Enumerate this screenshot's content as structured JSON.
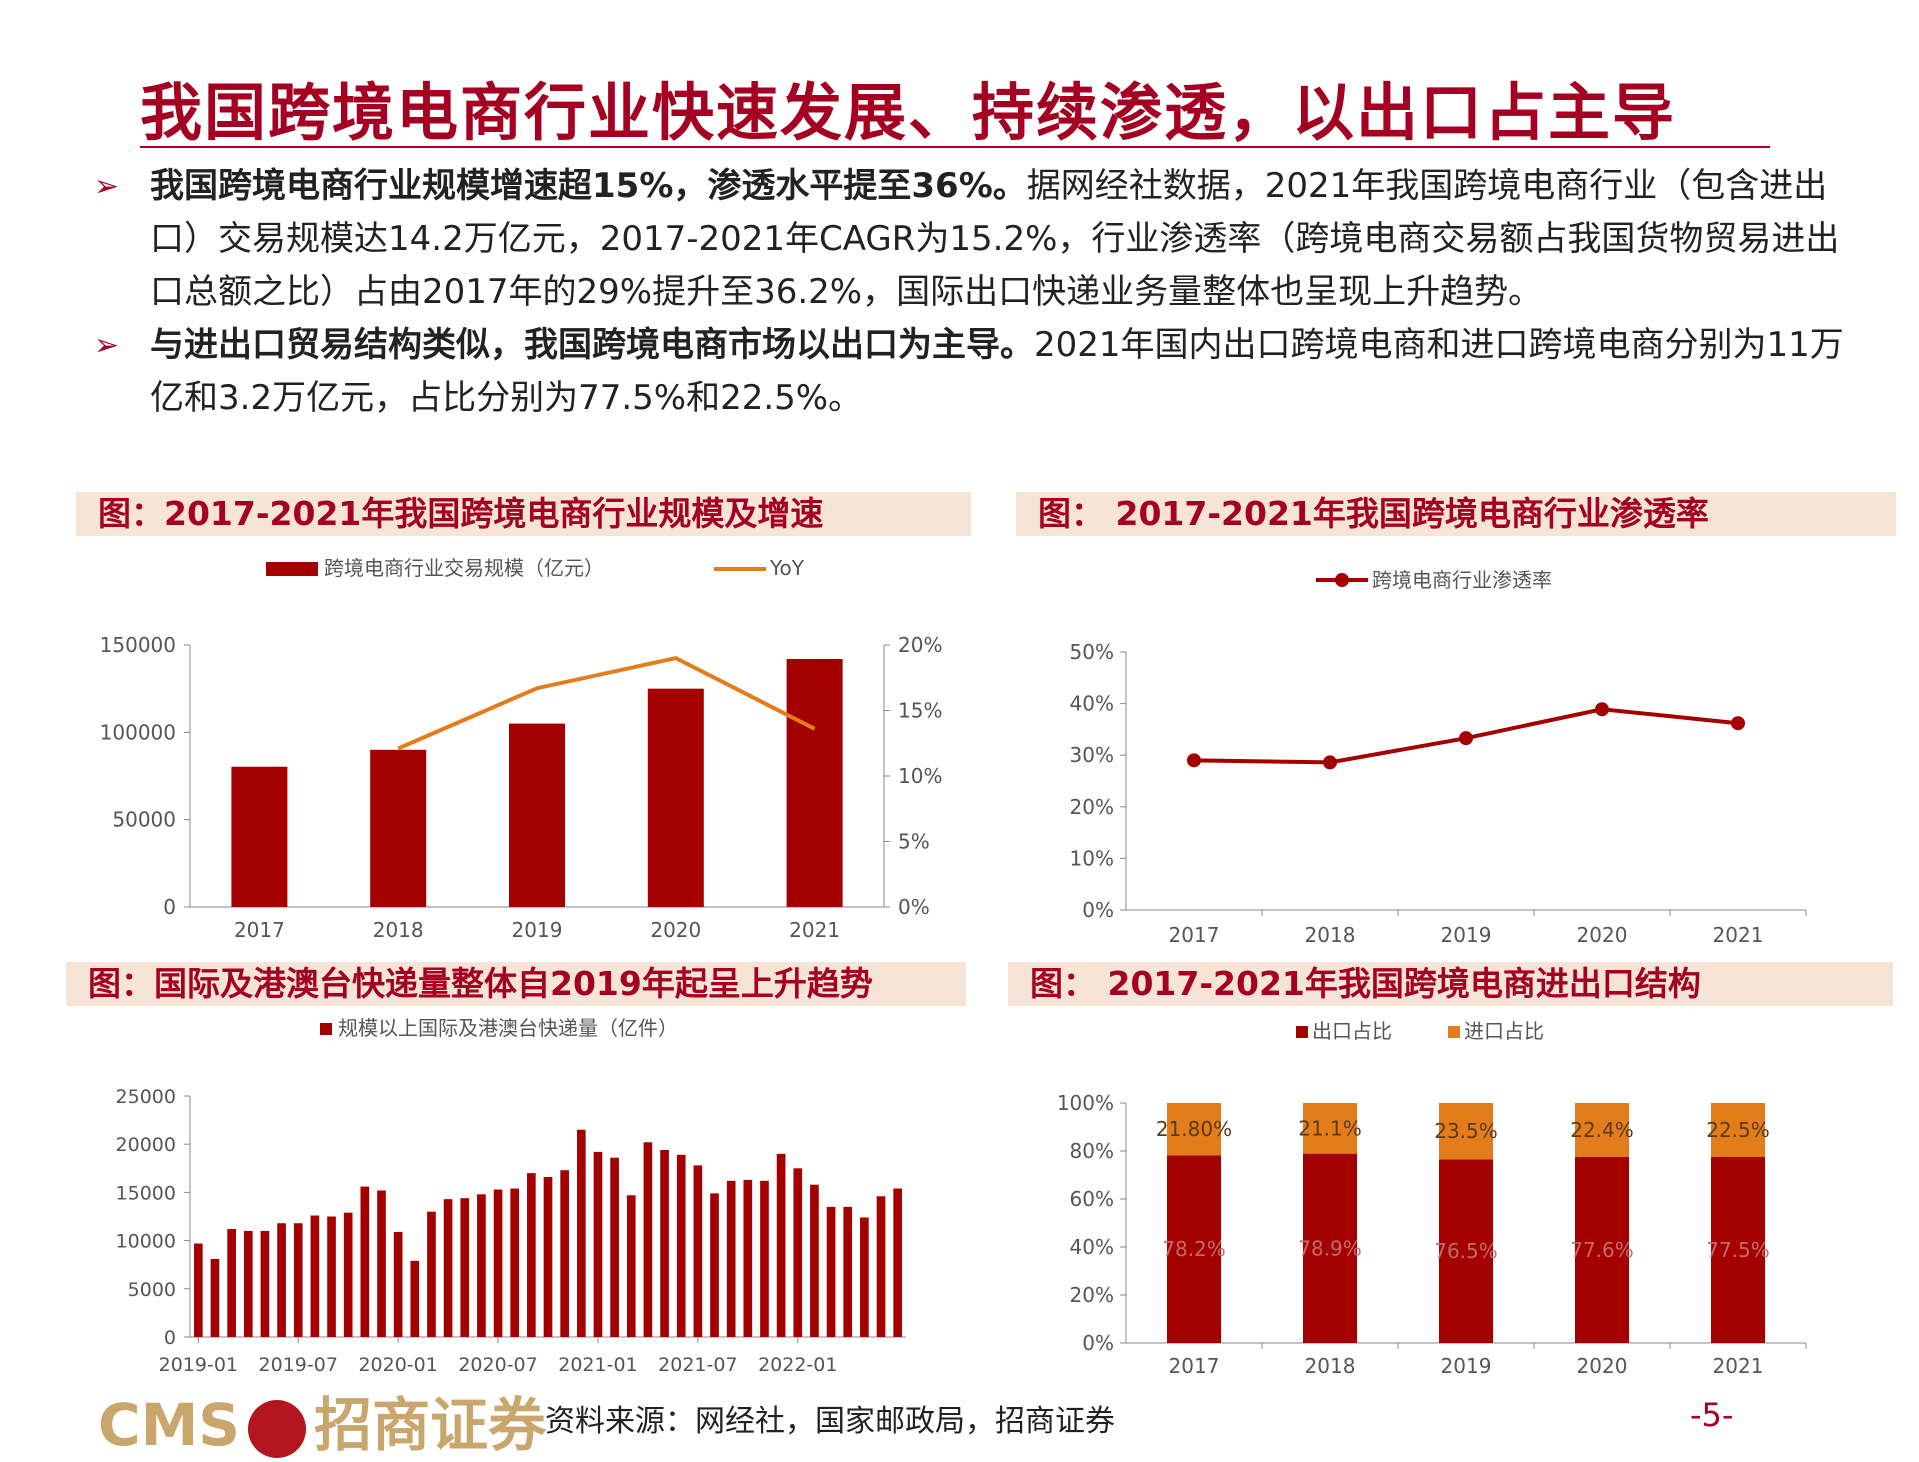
{
  "title": "我国跨境电商行业快速发展、持续渗透，以出口占主导",
  "bullets": [
    {
      "marker": "➢",
      "bold": "我国跨境电商行业规模增速超15%，渗透水平提至36%。",
      "text": "据网经社数据，2021年我国跨境电商行业（包含进出口）交易规模达14.2万亿元，2017-2021年CAGR为15.2%，行业渗透率（跨境电商交易额占我国货物贸易进出口总额之比）占由2017年的29%提升至36.2%，国际出口快递业务量整体也呈现上升趋势。"
    },
    {
      "marker": "➢",
      "bold": "与进出口贸易结构类似，我国跨境电商市场以出口为主导。",
      "text": "2021年国内出口跨境电商和进口跨境电商分别为11万亿和3.2万亿元，占比分别为77.5%和22.5%。"
    }
  ],
  "captions": {
    "c1": "图：2017-2021年我国跨境电商行业规模及增速",
    "c2": "图：  2017-2021年我国跨境电商行业渗透率",
    "c3": "图：国际及港澳台快递量整体自2019年起呈上升趋势",
    "c4": "图：  2017-2021年我国跨境电商进出口结构"
  },
  "colors": {
    "red": "#a50000",
    "orange": "#e37c1a",
    "title": "#a50021"
  },
  "chart_data": [
    {
      "type": "bar",
      "categories": [
        "2017",
        "2018",
        "2019",
        "2020",
        "2021"
      ],
      "series": [
        {
          "name": "跨境电商行业交易规模（亿元）",
          "values": [
            80300,
            90000,
            105000,
            125000,
            142000
          ],
          "axis": "left"
        },
        {
          "name": "YoY",
          "type": "line",
          "values": [
            null,
            12.1,
            16.7,
            19.0,
            13.6
          ],
          "axis": "right"
        }
      ],
      "yticks": [
        "0",
        "50000",
        "100000",
        "150000"
      ],
      "ylim": [
        0,
        150000
      ],
      "y2ticks": [
        "0%",
        "5%",
        "10%",
        "15%",
        "20%"
      ],
      "y2lim": [
        0,
        20
      ],
      "legend": "top"
    },
    {
      "type": "line",
      "categories": [
        "2017",
        "2018",
        "2019",
        "2020",
        "2021"
      ],
      "series": [
        {
          "name": "跨境电商行业渗透率",
          "values": [
            29.0,
            28.6,
            33.3,
            38.9,
            36.2
          ]
        }
      ],
      "yticks": [
        "0%",
        "10%",
        "20%",
        "30%",
        "40%",
        "50%"
      ],
      "ylim": [
        0,
        50
      ],
      "legend": "top"
    },
    {
      "type": "bar",
      "series": [
        {
          "name": "规模以上国际及港澳台快递量（亿件）",
          "values": [
            9700,
            8100,
            11200,
            11000,
            11000,
            11800,
            11800,
            12600,
            12500,
            12900,
            15600,
            15200,
            10900,
            7900,
            13000,
            14300,
            14400,
            14800,
            15300,
            15400,
            17000,
            16600,
            17300,
            21500,
            19200,
            18600,
            14700,
            20200,
            19400,
            18900,
            17800,
            14900,
            16200,
            16300,
            16200,
            19000,
            17500,
            15800,
            13500,
            13500,
            12400,
            14600,
            15400
          ]
        }
      ],
      "xticks": [
        "2019-01",
        "2019-07",
        "2020-01",
        "2020-07",
        "2021-01",
        "2021-07",
        "2022-01"
      ],
      "yticks": [
        "0",
        "5000",
        "10000",
        "15000",
        "20000",
        "25000"
      ],
      "ylim": [
        0,
        25000
      ],
      "legend": "top"
    },
    {
      "type": "bar",
      "stacked": true,
      "categories": [
        "2017",
        "2018",
        "2019",
        "2020",
        "2021"
      ],
      "series": [
        {
          "name": "出口占比",
          "values": [
            78.2,
            78.9,
            76.5,
            77.6,
            77.5
          ],
          "labels": [
            "78.2%",
            "78.9%",
            "76.5%",
            "77.6%",
            "77.5%"
          ]
        },
        {
          "name": "进口占比",
          "values": [
            21.8,
            21.1,
            23.5,
            22.4,
            22.5
          ],
          "labels": [
            "21.80%",
            "21.1%",
            "23.5%",
            "22.4%",
            "22.5%"
          ]
        }
      ],
      "yticks": [
        "0%",
        "20%",
        "40%",
        "60%",
        "80%",
        "100%"
      ],
      "ylim": [
        0,
        100
      ],
      "legend": "top"
    }
  ],
  "footer": {
    "logo_latin": "CMS",
    "logo_cn": "招商证券",
    "source": "资料来源：网经社，国家邮政局，招商证券",
    "page": "-5-"
  }
}
